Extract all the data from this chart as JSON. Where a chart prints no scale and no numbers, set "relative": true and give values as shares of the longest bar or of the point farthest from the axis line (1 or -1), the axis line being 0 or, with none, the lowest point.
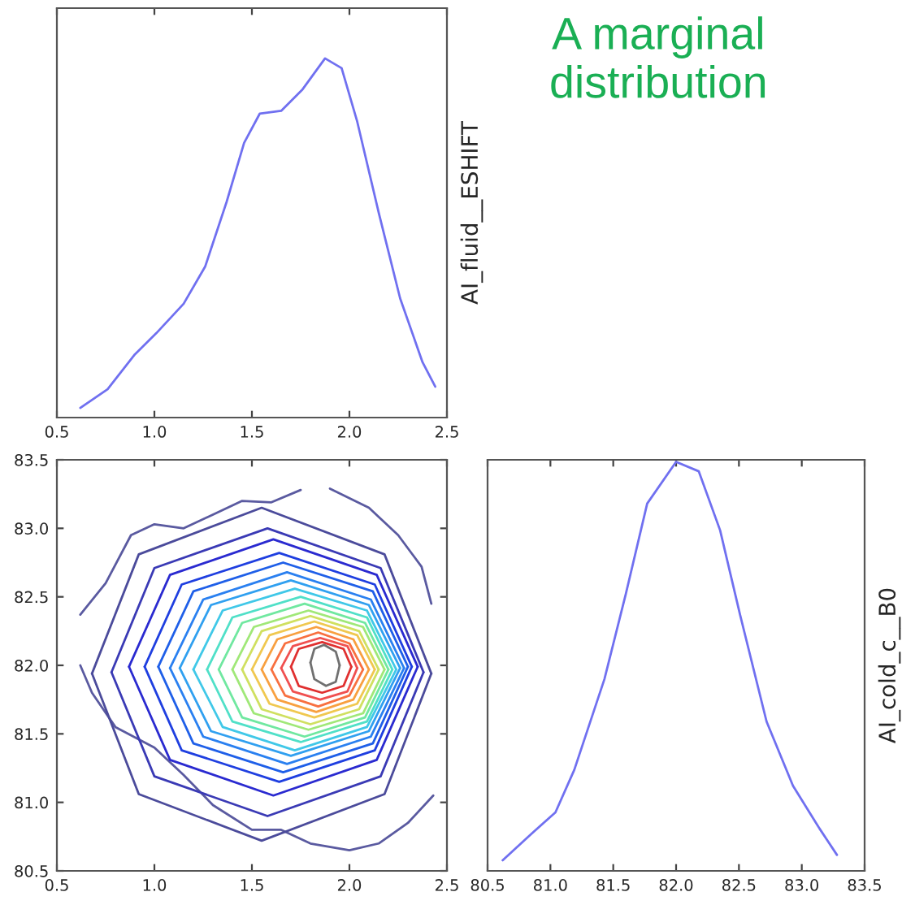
{
  "chart_data": [
    {
      "type": "line",
      "relative": true,
      "ylabel": "AI_fluid__ESHIFT",
      "annotations": [
        "A marginal distribution"
      ],
      "xlim": [
        0.5,
        2.5
      ],
      "xticks": [
        0.5,
        {
          "value": 1,
          "label": "1.0"
        },
        1.5,
        {
          "value": 2,
          "label": "2.0"
        },
        2.5
      ],
      "tick_labels": "x",
      "grid": false,
      "legend": false,
      "series": [
        {
          "color": "#7070f0",
          "x": [
            0.62,
            0.76,
            0.9,
            1.01,
            1.15,
            1.26,
            1.37,
            1.46,
            1.54,
            1.65,
            1.76,
            1.875,
            1.96,
            2.04,
            2.15,
            2.26,
            2.375,
            2.44
          ],
          "values": [
            0.027,
            0.079,
            0.176,
            0.235,
            0.317,
            0.42,
            0.6,
            0.765,
            0.846,
            0.854,
            0.914,
            1.0,
            0.973,
            0.824,
            0.571,
            0.332,
            0.154,
            0.086
          ]
        }
      ]
    },
    {
      "type": "line",
      "xlim": [
        0.5,
        2.5
      ],
      "xticks": [
        0.5,
        {
          "value": 1,
          "label": "1.0"
        },
        1.5,
        {
          "value": 2,
          "label": "2.0"
        },
        2.5
      ],
      "ylim": [
        80.5,
        83.5
      ],
      "yticks": [
        80.5,
        {
          "value": 81,
          "label": "81.0"
        },
        81.5,
        {
          "value": 82,
          "label": "82.0"
        },
        82.5,
        {
          "value": 83,
          "label": "83.0"
        },
        83.5
      ],
      "grid": false,
      "legend": false,
      "series": [
        {
          "color": "#5a5aa0",
          "x": [
            0.62,
            0.75,
            0.88,
            1.0,
            1.15,
            1.3,
            1.45,
            1.6,
            1.75
          ],
          "values": [
            82.37,
            82.6,
            82.95,
            83.03,
            83.0,
            83.1,
            83.2,
            83.19,
            83.28
          ]
        },
        {
          "color": "#5a5aa0",
          "x": [
            1.9,
            2.1,
            2.25,
            2.37,
            2.42
          ],
          "values": [
            83.29,
            83.15,
            82.95,
            82.72,
            82.45
          ]
        },
        {
          "color": "#5a5aa0",
          "x": [
            0.62,
            0.68,
            0.8,
            1.0,
            1.15,
            1.3,
            1.5,
            1.65,
            1.8,
            2.0,
            2.15,
            2.3,
            2.43
          ],
          "values": [
            82.0,
            81.8,
            81.55,
            81.4,
            81.2,
            80.98,
            80.8,
            80.8,
            80.7,
            80.65,
            80.7,
            80.85,
            81.05
          ]
        },
        {
          "color": "#4b4b9b",
          "x": [
            0.68,
            0.92,
            1.55,
            2.18,
            2.42
          ],
          "values": [
            81.94,
            82.81,
            83.15,
            82.81,
            81.94
          ]
        },
        {
          "color": "#4b4b9b",
          "x": [
            0.68,
            0.92,
            1.55,
            2.18,
            2.42
          ],
          "values": [
            81.94,
            81.06,
            80.72,
            81.06,
            81.94
          ]
        },
        {
          "color": "#3a3ab5",
          "x": [
            0.78,
            1.0,
            1.58,
            2.16,
            2.38
          ],
          "values": [
            81.95,
            82.71,
            83.0,
            82.71,
            81.95
          ]
        },
        {
          "color": "#3a3ab5",
          "x": [
            0.78,
            1.0,
            1.58,
            2.16,
            2.38
          ],
          "values": [
            81.95,
            81.19,
            80.9,
            81.19,
            81.95
          ]
        },
        {
          "color": "#2a2ad0",
          "x": [
            0.87,
            1.08,
            1.61,
            2.14,
            2.35
          ],
          "values": [
            81.99,
            82.66,
            82.92,
            82.66,
            81.99
          ]
        },
        {
          "color": "#2a2ad0",
          "x": [
            0.87,
            1.08,
            1.61,
            2.14,
            2.35
          ],
          "values": [
            81.99,
            81.31,
            81.05,
            81.31,
            81.99
          ]
        },
        {
          "color": "#1f3fe0",
          "x": [
            0.95,
            1.14,
            1.64,
            2.13,
            2.32
          ],
          "values": [
            81.99,
            82.59,
            82.82,
            82.59,
            81.99
          ]
        },
        {
          "color": "#1f3fe0",
          "x": [
            0.95,
            1.14,
            1.64,
            2.13,
            2.32
          ],
          "values": [
            81.99,
            81.38,
            81.15,
            81.38,
            81.99
          ]
        },
        {
          "color": "#1f5fe8",
          "x": [
            1.02,
            1.2,
            1.66,
            2.12,
            2.3
          ],
          "values": [
            81.99,
            82.54,
            82.75,
            82.54,
            81.99
          ]
        },
        {
          "color": "#1f5fe8",
          "x": [
            1.02,
            1.2,
            1.66,
            2.12,
            2.3
          ],
          "values": [
            81.99,
            81.43,
            81.22,
            81.43,
            81.99
          ]
        },
        {
          "color": "#2a80f0",
          "x": [
            1.08,
            1.25,
            1.68,
            2.11,
            2.28
          ],
          "values": [
            81.98,
            82.48,
            82.68,
            82.48,
            81.98
          ]
        },
        {
          "color": "#2a80f0",
          "x": [
            1.08,
            1.25,
            1.68,
            2.11,
            2.28
          ],
          "values": [
            81.98,
            81.48,
            81.28,
            81.48,
            81.98
          ]
        },
        {
          "color": "#30a0f0",
          "x": [
            1.13,
            1.29,
            1.7,
            2.1,
            2.26
          ],
          "values": [
            81.98,
            82.44,
            82.62,
            82.44,
            81.98
          ]
        },
        {
          "color": "#30a0f0",
          "x": [
            1.13,
            1.29,
            1.7,
            2.1,
            2.26
          ],
          "values": [
            81.98,
            81.52,
            81.34,
            81.52,
            81.98
          ]
        },
        {
          "color": "#40c8e8",
          "x": [
            1.2,
            1.35,
            1.72,
            2.09,
            2.24
          ],
          "values": [
            81.97,
            82.4,
            82.56,
            82.4,
            81.97
          ]
        },
        {
          "color": "#40c8e8",
          "x": [
            1.2,
            1.35,
            1.72,
            2.09,
            2.24
          ],
          "values": [
            81.97,
            81.55,
            81.38,
            81.55,
            81.97
          ]
        },
        {
          "color": "#50e0c8",
          "x": [
            1.27,
            1.4,
            1.75,
            2.09,
            2.22
          ],
          "values": [
            81.97,
            82.35,
            82.5,
            82.35,
            81.97
          ]
        },
        {
          "color": "#50e0c8",
          "x": [
            1.27,
            1.4,
            1.75,
            2.09,
            2.22
          ],
          "values": [
            81.97,
            81.59,
            81.44,
            81.59,
            81.97
          ]
        },
        {
          "color": "#70e8a0",
          "x": [
            1.33,
            1.45,
            1.77,
            2.08,
            2.2
          ],
          "values": [
            81.97,
            82.31,
            82.45,
            82.31,
            81.97
          ]
        },
        {
          "color": "#70e8a0",
          "x": [
            1.33,
            1.45,
            1.77,
            2.08,
            2.2
          ],
          "values": [
            81.97,
            81.62,
            81.48,
            81.62,
            81.97
          ]
        },
        {
          "color": "#a0e878",
          "x": [
            1.4,
            1.51,
            1.79,
            2.07,
            2.18
          ],
          "values": [
            81.97,
            82.28,
            82.4,
            82.28,
            81.97
          ]
        },
        {
          "color": "#a0e878",
          "x": [
            1.4,
            1.51,
            1.79,
            2.07,
            2.18
          ],
          "values": [
            81.97,
            81.65,
            81.53,
            81.65,
            81.97
          ]
        },
        {
          "color": "#d0e060",
          "x": [
            1.45,
            1.55,
            1.8,
            2.05,
            2.15
          ],
          "values": [
            81.97,
            82.25,
            82.36,
            82.25,
            81.97
          ]
        },
        {
          "color": "#d0e060",
          "x": [
            1.45,
            1.55,
            1.8,
            2.05,
            2.15
          ],
          "values": [
            81.97,
            81.68,
            81.57,
            81.68,
            81.97
          ]
        },
        {
          "color": "#f0c850",
          "x": [
            1.5,
            1.59,
            1.82,
            2.04,
            2.13
          ],
          "values": [
            81.97,
            82.22,
            82.32,
            82.22,
            81.97
          ]
        },
        {
          "color": "#f0c850",
          "x": [
            1.5,
            1.59,
            1.82,
            2.04,
            2.13
          ],
          "values": [
            81.97,
            81.72,
            81.62,
            81.72,
            81.97
          ]
        },
        {
          "color": "#f8a040",
          "x": [
            1.55,
            1.63,
            1.83,
            2.02,
            2.1
          ],
          "values": [
            81.97,
            82.19,
            82.28,
            82.19,
            81.97
          ]
        },
        {
          "color": "#f8a040",
          "x": [
            1.55,
            1.63,
            1.83,
            2.02,
            2.1
          ],
          "values": [
            81.97,
            81.75,
            81.66,
            81.75,
            81.97
          ]
        },
        {
          "color": "#f87040",
          "x": [
            1.6,
            1.67,
            1.84,
            2.0,
            2.07
          ],
          "values": [
            81.97,
            82.16,
            82.24,
            82.16,
            81.97
          ]
        },
        {
          "color": "#f87040",
          "x": [
            1.6,
            1.67,
            1.84,
            2.0,
            2.07
          ],
          "values": [
            81.97,
            81.78,
            81.7,
            81.78,
            81.97
          ]
        },
        {
          "color": "#f05050",
          "x": [
            1.65,
            1.71,
            1.85,
            1.99,
            2.04
          ],
          "values": [
            81.98,
            82.14,
            82.2,
            82.14,
            81.98
          ]
        },
        {
          "color": "#f05050",
          "x": [
            1.65,
            1.71,
            1.85,
            1.99,
            2.04
          ],
          "values": [
            81.98,
            81.81,
            81.75,
            81.81,
            81.98
          ]
        },
        {
          "color": "#e03030",
          "x": [
            1.7,
            1.74,
            1.86,
            1.97,
            2.01
          ],
          "values": [
            81.99,
            82.12,
            82.17,
            82.12,
            81.99
          ]
        },
        {
          "color": "#e03030",
          "x": [
            1.7,
            1.74,
            1.86,
            1.97,
            2.01
          ],
          "values": [
            81.99,
            81.85,
            81.8,
            81.85,
            81.99
          ]
        },
        {
          "color": "#707070",
          "x": [
            1.8,
            1.82,
            1.87,
            1.93,
            1.95
          ],
          "values": [
            82.02,
            82.12,
            82.15,
            82.1,
            82.0
          ]
        },
        {
          "color": "#707070",
          "x": [
            1.8,
            1.82,
            1.88,
            1.93,
            1.95
          ],
          "values": [
            82.02,
            81.9,
            81.85,
            81.88,
            82.0
          ]
        }
      ]
    },
    {
      "type": "line",
      "relative": true,
      "ylabel": "AI_cold_c__B0",
      "xlim": [
        80.5,
        83.5
      ],
      "xticks": [
        80.5,
        {
          "value": 81,
          "label": "81.0"
        },
        81.5,
        {
          "value": 82,
          "label": "82.0"
        },
        82.5,
        {
          "value": 83,
          "label": "83.0"
        },
        83.5
      ],
      "tick_labels": "x",
      "grid": false,
      "legend": false,
      "series": [
        {
          "color": "#7070f0",
          "x": [
            80.62,
            80.85,
            81.04,
            81.19,
            81.43,
            81.6,
            81.77,
            82.0,
            82.18,
            82.35,
            82.51,
            82.72,
            82.93,
            83.14,
            83.28
          ],
          "values": [
            0.026,
            0.091,
            0.143,
            0.247,
            0.469,
            0.677,
            0.898,
            1.0,
            0.977,
            0.833,
            0.625,
            0.365,
            0.208,
            0.104,
            0.039
          ]
        }
      ]
    }
  ]
}
